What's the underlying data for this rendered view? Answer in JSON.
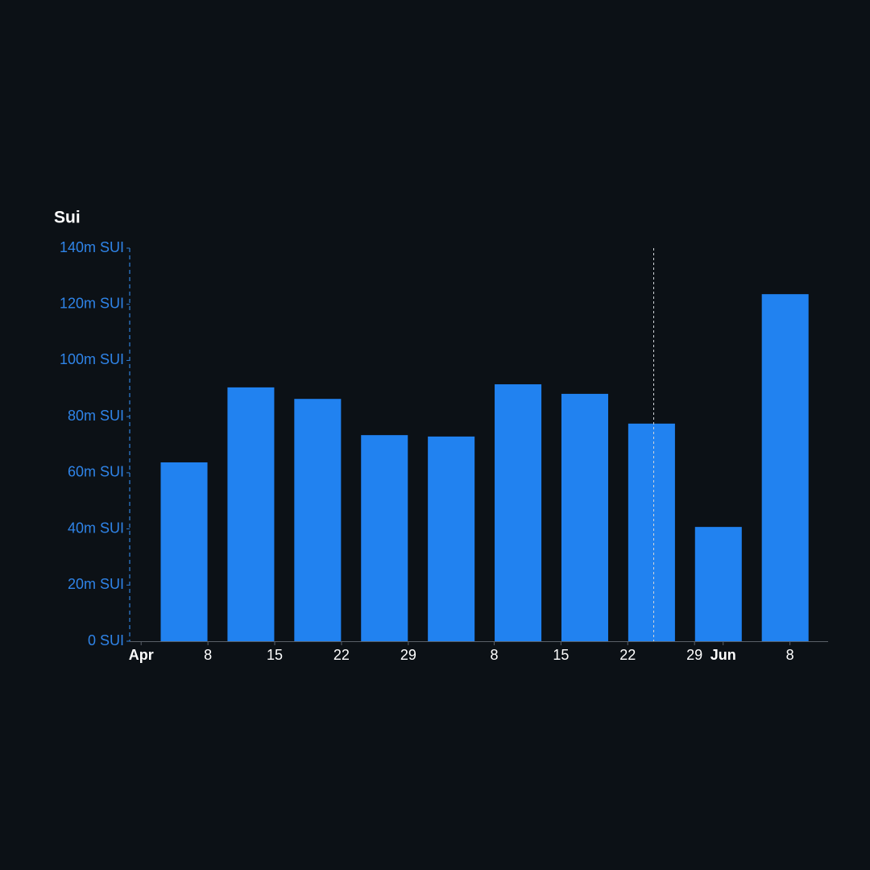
{
  "chart_data": {
    "type": "bar",
    "title": "Sui",
    "x": [
      4.5,
      11.5,
      18.5,
      25.5,
      32.5,
      39.5,
      46.5,
      53.5,
      60.5,
      67.5
    ],
    "categories": [
      null,
      null,
      null,
      null,
      null,
      null,
      null,
      null,
      null,
      null
    ],
    "values": [
      63700000,
      90400000,
      86300000,
      73400000,
      72900000,
      91500000,
      88100000,
      77500000,
      40700000,
      123600000
    ],
    "color": "#2182f0",
    "xlim": [
      -1.2,
      72
    ],
    "xticks": [
      {
        "value": 0,
        "label": "Apr"
      },
      {
        "value": 7,
        "label": "8"
      },
      {
        "value": 14,
        "label": "15"
      },
      {
        "value": 21,
        "label": "22"
      },
      {
        "value": 28,
        "label": "29"
      },
      {
        "value": 37,
        "label": "8"
      },
      {
        "value": 44,
        "label": "15"
      },
      {
        "value": 51,
        "label": "22"
      },
      {
        "value": 58,
        "label": "29"
      },
      {
        "value": 61,
        "label": "Jun"
      },
      {
        "value": 68,
        "label": "8"
      }
    ],
    "ylim": [
      0,
      140000000
    ],
    "yticks": [
      {
        "value": 0,
        "label": "0 SUI"
      },
      {
        "value": 20000000,
        "label": "20m SUI"
      },
      {
        "value": 40000000,
        "label": "40m SUI"
      },
      {
        "value": 60000000,
        "label": "60m SUI"
      },
      {
        "value": 80000000,
        "label": "80m SUI"
      },
      {
        "value": 100000000,
        "label": "100m SUI"
      },
      {
        "value": 120000000,
        "label": "120m SUI"
      },
      {
        "value": 140000000,
        "label": "140m SUI"
      }
    ]
  }
}
